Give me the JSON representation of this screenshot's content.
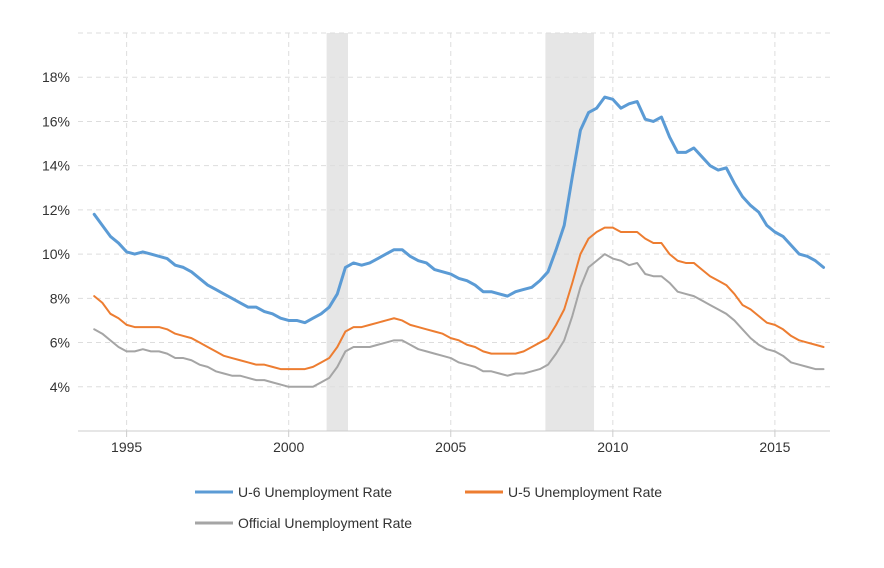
{
  "chart_data": {
    "type": "line",
    "title": "",
    "xlabel": "",
    "ylabel": "",
    "xlim": [
      1993.5,
      2016.7
    ],
    "ylim": [
      2.0,
      20.0
    ],
    "x_ticks": [
      {
        "value": 1995,
        "label": "1995"
      },
      {
        "value": 2000,
        "label": "2000"
      },
      {
        "value": 2005,
        "label": "2005"
      },
      {
        "value": 2010,
        "label": "2010"
      },
      {
        "value": 2015,
        "label": "2015"
      }
    ],
    "y_ticks": [
      {
        "value": 4,
        "label": "4%"
      },
      {
        "value": 6,
        "label": "6%"
      },
      {
        "value": 8,
        "label": "8%"
      },
      {
        "value": 10,
        "label": "10%"
      },
      {
        "value": 12,
        "label": "12%"
      },
      {
        "value": 14,
        "label": "14%"
      },
      {
        "value": 16,
        "label": "16%"
      },
      {
        "value": 18,
        "label": "18%"
      }
    ],
    "grid": true,
    "legend_position": "bottom",
    "recessions": [
      [
        2001.17,
        2001.83
      ],
      [
        2007.92,
        2009.42
      ]
    ],
    "series": [
      {
        "name": "U-6 Unemployment Rate",
        "color": "#5b9bd5",
        "x": [
          1994.0,
          1994.25,
          1994.5,
          1994.75,
          1995.0,
          1995.25,
          1995.5,
          1995.75,
          1996.0,
          1996.25,
          1996.5,
          1996.75,
          1997.0,
          1997.25,
          1997.5,
          1997.75,
          1998.0,
          1998.25,
          1998.5,
          1998.75,
          1999.0,
          1999.25,
          1999.5,
          1999.75,
          2000.0,
          2000.25,
          2000.5,
          2000.75,
          2001.0,
          2001.25,
          2001.5,
          2001.75,
          2002.0,
          2002.25,
          2002.5,
          2002.75,
          2003.0,
          2003.25,
          2003.5,
          2003.75,
          2004.0,
          2004.25,
          2004.5,
          2004.75,
          2005.0,
          2005.25,
          2005.5,
          2005.75,
          2006.0,
          2006.25,
          2006.5,
          2006.75,
          2007.0,
          2007.25,
          2007.5,
          2007.75,
          2008.0,
          2008.25,
          2008.5,
          2008.75,
          2009.0,
          2009.25,
          2009.5,
          2009.75,
          2010.0,
          2010.25,
          2010.5,
          2010.75,
          2011.0,
          2011.25,
          2011.5,
          2011.75,
          2012.0,
          2012.25,
          2012.5,
          2012.75,
          2013.0,
          2013.25,
          2013.5,
          2013.75,
          2014.0,
          2014.25,
          2014.5,
          2014.75,
          2015.0,
          2015.25,
          2015.5,
          2015.75,
          2016.0,
          2016.25,
          2016.5
        ],
        "values": [
          11.8,
          11.3,
          10.8,
          10.5,
          10.1,
          10.0,
          10.1,
          10.0,
          9.9,
          9.8,
          9.5,
          9.4,
          9.2,
          8.9,
          8.6,
          8.4,
          8.2,
          8.0,
          7.8,
          7.6,
          7.6,
          7.4,
          7.3,
          7.1,
          7.0,
          7.0,
          6.9,
          7.1,
          7.3,
          7.6,
          8.2,
          9.4,
          9.6,
          9.5,
          9.6,
          9.8,
          10.0,
          10.2,
          10.2,
          9.9,
          9.7,
          9.6,
          9.3,
          9.2,
          9.1,
          8.9,
          8.8,
          8.6,
          8.3,
          8.3,
          8.2,
          8.1,
          8.3,
          8.4,
          8.5,
          8.8,
          9.2,
          10.2,
          11.3,
          13.5,
          15.6,
          16.4,
          16.6,
          17.1,
          17.0,
          16.6,
          16.8,
          16.9,
          16.1,
          16.0,
          16.2,
          15.3,
          14.6,
          14.6,
          14.8,
          14.4,
          14.0,
          13.8,
          13.9,
          13.2,
          12.6,
          12.2,
          11.9,
          11.3,
          11.0,
          10.8,
          10.4,
          10.0,
          9.9,
          9.7,
          9.4
        ]
      },
      {
        "name": "U-5 Unemployment Rate",
        "color": "#ed7d31",
        "x": [
          1994.0,
          1994.25,
          1994.5,
          1994.75,
          1995.0,
          1995.25,
          1995.5,
          1995.75,
          1996.0,
          1996.25,
          1996.5,
          1996.75,
          1997.0,
          1997.25,
          1997.5,
          1997.75,
          1998.0,
          1998.25,
          1998.5,
          1998.75,
          1999.0,
          1999.25,
          1999.5,
          1999.75,
          2000.0,
          2000.25,
          2000.5,
          2000.75,
          2001.0,
          2001.25,
          2001.5,
          2001.75,
          2002.0,
          2002.25,
          2002.5,
          2002.75,
          2003.0,
          2003.25,
          2003.5,
          2003.75,
          2004.0,
          2004.25,
          2004.5,
          2004.75,
          2005.0,
          2005.25,
          2005.5,
          2005.75,
          2006.0,
          2006.25,
          2006.5,
          2006.75,
          2007.0,
          2007.25,
          2007.5,
          2007.75,
          2008.0,
          2008.25,
          2008.5,
          2008.75,
          2009.0,
          2009.25,
          2009.5,
          2009.75,
          2010.0,
          2010.25,
          2010.5,
          2010.75,
          2011.0,
          2011.25,
          2011.5,
          2011.75,
          2012.0,
          2012.25,
          2012.5,
          2012.75,
          2013.0,
          2013.25,
          2013.5,
          2013.75,
          2014.0,
          2014.25,
          2014.5,
          2014.75,
          2015.0,
          2015.25,
          2015.5,
          2015.75,
          2016.0,
          2016.25,
          2016.5
        ],
        "values": [
          8.1,
          7.8,
          7.3,
          7.1,
          6.8,
          6.7,
          6.7,
          6.7,
          6.7,
          6.6,
          6.4,
          6.3,
          6.2,
          6.0,
          5.8,
          5.6,
          5.4,
          5.3,
          5.2,
          5.1,
          5.0,
          5.0,
          4.9,
          4.8,
          4.8,
          4.8,
          4.8,
          4.9,
          5.1,
          5.3,
          5.8,
          6.5,
          6.7,
          6.7,
          6.8,
          6.9,
          7.0,
          7.1,
          7.0,
          6.8,
          6.7,
          6.6,
          6.5,
          6.4,
          6.2,
          6.1,
          5.9,
          5.8,
          5.6,
          5.5,
          5.5,
          5.5,
          5.5,
          5.6,
          5.8,
          6.0,
          6.2,
          6.8,
          7.5,
          8.7,
          10.0,
          10.7,
          11.0,
          11.2,
          11.2,
          11.0,
          11.0,
          11.0,
          10.7,
          10.5,
          10.5,
          10.0,
          9.7,
          9.6,
          9.6,
          9.3,
          9.0,
          8.8,
          8.6,
          8.2,
          7.7,
          7.5,
          7.2,
          6.9,
          6.8,
          6.6,
          6.3,
          6.1,
          6.0,
          5.9,
          5.8
        ]
      },
      {
        "name": "Official Unemployment Rate",
        "color": "#a5a5a5",
        "x": [
          1994.0,
          1994.25,
          1994.5,
          1994.75,
          1995.0,
          1995.25,
          1995.5,
          1995.75,
          1996.0,
          1996.25,
          1996.5,
          1996.75,
          1997.0,
          1997.25,
          1997.5,
          1997.75,
          1998.0,
          1998.25,
          1998.5,
          1998.75,
          1999.0,
          1999.25,
          1999.5,
          1999.75,
          2000.0,
          2000.25,
          2000.5,
          2000.75,
          2001.0,
          2001.25,
          2001.5,
          2001.75,
          2002.0,
          2002.25,
          2002.5,
          2002.75,
          2003.0,
          2003.25,
          2003.5,
          2003.75,
          2004.0,
          2004.25,
          2004.5,
          2004.75,
          2005.0,
          2005.25,
          2005.5,
          2005.75,
          2006.0,
          2006.25,
          2006.5,
          2006.75,
          2007.0,
          2007.25,
          2007.5,
          2007.75,
          2008.0,
          2008.25,
          2008.5,
          2008.75,
          2009.0,
          2009.25,
          2009.5,
          2009.75,
          2010.0,
          2010.25,
          2010.5,
          2010.75,
          2011.0,
          2011.25,
          2011.5,
          2011.75,
          2012.0,
          2012.25,
          2012.5,
          2012.75,
          2013.0,
          2013.25,
          2013.5,
          2013.75,
          2014.0,
          2014.25,
          2014.5,
          2014.75,
          2015.0,
          2015.25,
          2015.5,
          2015.75,
          2016.0,
          2016.25,
          2016.5
        ],
        "values": [
          6.6,
          6.4,
          6.1,
          5.8,
          5.6,
          5.6,
          5.7,
          5.6,
          5.6,
          5.5,
          5.3,
          5.3,
          5.2,
          5.0,
          4.9,
          4.7,
          4.6,
          4.5,
          4.5,
          4.4,
          4.3,
          4.3,
          4.2,
          4.1,
          4.0,
          4.0,
          4.0,
          4.0,
          4.2,
          4.4,
          4.9,
          5.6,
          5.8,
          5.8,
          5.8,
          5.9,
          6.0,
          6.1,
          6.1,
          5.9,
          5.7,
          5.6,
          5.5,
          5.4,
          5.3,
          5.1,
          5.0,
          4.9,
          4.7,
          4.7,
          4.6,
          4.5,
          4.6,
          4.6,
          4.7,
          4.8,
          5.0,
          5.5,
          6.1,
          7.2,
          8.5,
          9.4,
          9.7,
          10.0,
          9.8,
          9.7,
          9.5,
          9.6,
          9.1,
          9.0,
          9.0,
          8.7,
          8.3,
          8.2,
          8.1,
          7.9,
          7.7,
          7.5,
          7.3,
          7.0,
          6.6,
          6.2,
          5.9,
          5.7,
          5.6,
          5.4,
          5.1,
          5.0,
          4.9,
          4.8,
          4.8
        ]
      }
    ]
  }
}
